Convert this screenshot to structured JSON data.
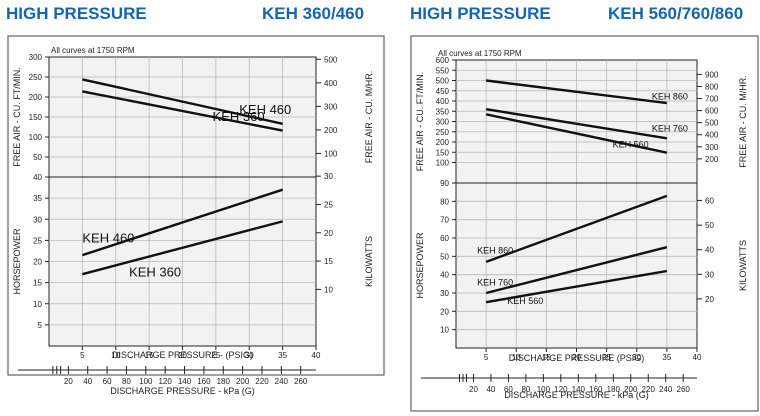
{
  "left": {
    "header_left": "HIGH PRESSURE",
    "header_right": "KEH 360/460",
    "rpm_note": "All curves at 1750 RPM",
    "y_left_label_top": "FREE AIR - CU. FT/MIN.",
    "y_right_label_top": "FREE AIR - CU. M/HR.",
    "y_left_label_bottom": "HORSEPOWER",
    "y_right_label_bottom": "KILOWATTS",
    "x_label": "DISCHARGE PRESSURE - (PSIG)",
    "x2_label": "DISCHARGE PRESSURE - kPa (G)"
  },
  "right": {
    "header_left": "HIGH PRESSURE",
    "header_right": "KEH 560/760/860",
    "rpm_note": "All curves at 1750 RPM",
    "y_left_label_top": "FREE AIR - CU. FT/MIN.",
    "y_right_label_top": "FREE AIR - CU. M/HR.",
    "y_left_label_bottom": "HORSEPOWER",
    "y_right_label_bottom": "KILOWATTS",
    "x_label": "DISCHARGE PRESSURE (PSIG)",
    "x2_label": "DISCHARGE PRESSURE - kPa (G)"
  },
  "chart_data": [
    {
      "type": "line",
      "title": "KEH 360/460",
      "x_unit": "PSIG",
      "xlim": [
        0,
        40
      ],
      "x_ticks": [
        5,
        10,
        15,
        20,
        25,
        30,
        35,
        40
      ],
      "x2_ticks": [
        20,
        40,
        60,
        80,
        100,
        120,
        140,
        160,
        180,
        200,
        220,
        240,
        260
      ],
      "grid": true,
      "top": {
        "ylabel": "FREE AIR - CU. FT/MIN.",
        "ylim": [
          0,
          300
        ],
        "y_ticks": [
          50,
          100,
          150,
          200,
          250,
          300
        ],
        "y2label": "FREE AIR - CU. M/HR.",
        "y2_ticks": [
          100,
          200,
          300,
          400,
          500
        ],
        "y2_tick_values": [
          58.9,
          117.7,
          176.6,
          235.4,
          294.3
        ],
        "series": [
          {
            "name": "KEH 460",
            "x": [
              5,
              35
            ],
            "y": [
              244,
              133
            ]
          },
          {
            "name": "KEH 360",
            "x": [
              5,
              35
            ],
            "y": [
              214,
              116
            ]
          }
        ]
      },
      "bottom": {
        "ylabel": "HORSEPOWER",
        "ylim": [
          0,
          40
        ],
        "y_ticks": [
          5,
          10,
          15,
          20,
          25,
          30,
          35,
          40
        ],
        "y2label": "KILOWATTS",
        "y2_ticks": [
          10,
          15,
          20,
          25,
          30
        ],
        "y2_tick_values": [
          13.4,
          20.1,
          26.8,
          33.5,
          40.2
        ],
        "series": [
          {
            "name": "KEH 460",
            "x": [
              5,
              35
            ],
            "y": [
              21.5,
              37
            ]
          },
          {
            "name": "KEH 360",
            "x": [
              5,
              35
            ],
            "y": [
              17,
              29.5
            ]
          }
        ]
      }
    },
    {
      "type": "line",
      "title": "KEH 560/760/860",
      "x_unit": "PSIG",
      "xlim": [
        0,
        40
      ],
      "x_ticks": [
        5,
        10,
        15,
        20,
        25,
        30,
        35,
        40
      ],
      "x2_ticks": [
        20,
        40,
        60,
        80,
        100,
        120,
        140,
        160,
        180,
        200,
        220,
        240,
        260
      ],
      "grid": true,
      "top": {
        "ylabel": "FREE AIR - CU. FT/MIN.",
        "ylim": [
          0,
          600
        ],
        "y_ticks": [
          100,
          150,
          200,
          250,
          300,
          350,
          400,
          450,
          500,
          550,
          600
        ],
        "y2label": "FREE AIR - CU. M/HR.",
        "y2_ticks": [
          200,
          300,
          400,
          500,
          600,
          700,
          800,
          900
        ],
        "y2_tick_values": [
          117.7,
          176.6,
          235.4,
          294.3,
          353.1,
          412,
          470.9,
          529.7
        ],
        "series": [
          {
            "name": "KEH 860",
            "x": [
              5,
              35
            ],
            "y": [
              500,
              390
            ]
          },
          {
            "name": "KEH 760",
            "x": [
              5,
              35
            ],
            "y": [
              360,
              218
            ]
          },
          {
            "name": "KEH 560",
            "x": [
              5,
              35
            ],
            "y": [
              335,
              148
            ]
          }
        ]
      },
      "bottom": {
        "ylabel": "HORSEPOWER",
        "ylim": [
          0,
          90
        ],
        "y_ticks": [
          10,
          20,
          30,
          40,
          50,
          60,
          70,
          80,
          90
        ],
        "y2label": "KILOWATTS",
        "y2_ticks": [
          20,
          30,
          40,
          50,
          60
        ],
        "y2_tick_values": [
          26.8,
          40.2,
          53.6,
          67,
          80.5
        ],
        "series": [
          {
            "name": "KEH 860",
            "x": [
              5,
              35
            ],
            "y": [
              47,
              83
            ]
          },
          {
            "name": "KEH 760",
            "x": [
              5,
              35
            ],
            "y": [
              30,
              55
            ]
          },
          {
            "name": "KEH 560",
            "x": [
              5,
              35
            ],
            "y": [
              25,
              42
            ]
          }
        ]
      }
    }
  ]
}
